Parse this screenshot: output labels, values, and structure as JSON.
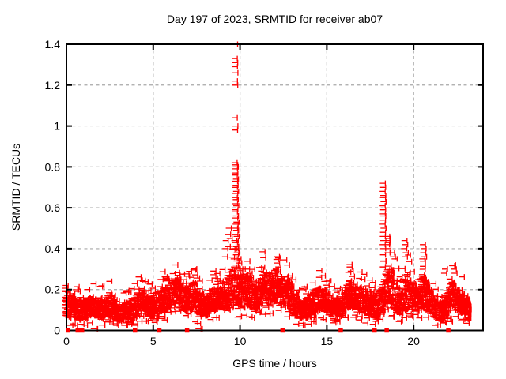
{
  "chart_data": {
    "type": "scatter",
    "title": "Day 197 of 2023, SRMTID for receiver ab07",
    "xlabel": "GPS time / hours",
    "ylabel": "SRMTID / TECUs",
    "xlim": [
      0,
      24
    ],
    "ylim": [
      0,
      1.4
    ],
    "x_ticks": [
      0,
      5,
      10,
      15,
      20
    ],
    "x_tick_labels": [
      "0",
      "5",
      "10",
      "15",
      "20"
    ],
    "y_ticks": [
      0,
      0.2,
      0.4,
      0.6,
      0.8,
      1.0,
      1.2,
      1.4
    ],
    "y_tick_labels": [
      "0",
      "0.2",
      "0.4",
      "0.6",
      "0.8",
      "1",
      "1.2",
      "1.4"
    ],
    "grid": true,
    "legend": "none",
    "marker": "plus",
    "marker_color": "#ff0000",
    "grid_color": "#a8a8a8",
    "border_color": "#000000",
    "background_color": "#ffffff",
    "data_start_hour": 0.05,
    "data_end_hour": 23.32,
    "baseline_band_note": "dense noisy band; control points [hour, center TECU, half-spread TECU]",
    "baseline_band": [
      [
        0.05,
        0.14,
        0.07
      ],
      [
        0.3,
        0.12,
        0.06
      ],
      [
        0.7,
        0.1,
        0.05
      ],
      [
        1.1,
        0.1,
        0.05
      ],
      [
        1.5,
        0.12,
        0.05
      ],
      [
        1.9,
        0.11,
        0.05
      ],
      [
        2.3,
        0.1,
        0.05
      ],
      [
        2.6,
        0.13,
        0.05
      ],
      [
        3.0,
        0.08,
        0.04
      ],
      [
        3.4,
        0.09,
        0.04
      ],
      [
        3.8,
        0.1,
        0.05
      ],
      [
        4.2,
        0.13,
        0.06
      ],
      [
        4.5,
        0.15,
        0.06
      ],
      [
        4.9,
        0.11,
        0.05
      ],
      [
        5.3,
        0.13,
        0.06
      ],
      [
        5.7,
        0.15,
        0.06
      ],
      [
        6.1,
        0.17,
        0.06
      ],
      [
        6.5,
        0.2,
        0.07
      ],
      [
        6.8,
        0.15,
        0.06
      ],
      [
        7.1,
        0.16,
        0.06
      ],
      [
        7.4,
        0.18,
        0.07
      ],
      [
        7.8,
        0.13,
        0.06
      ],
      [
        8.1,
        0.12,
        0.05
      ],
      [
        8.5,
        0.15,
        0.06
      ],
      [
        8.9,
        0.16,
        0.06
      ],
      [
        9.2,
        0.17,
        0.07
      ],
      [
        9.5,
        0.19,
        0.08
      ],
      [
        9.8,
        0.22,
        0.09
      ],
      [
        10.1,
        0.19,
        0.08
      ],
      [
        10.5,
        0.2,
        0.08
      ],
      [
        10.9,
        0.16,
        0.06
      ],
      [
        11.2,
        0.18,
        0.07
      ],
      [
        11.5,
        0.22,
        0.08
      ],
      [
        11.9,
        0.2,
        0.08
      ],
      [
        12.2,
        0.22,
        0.08
      ],
      [
        12.5,
        0.18,
        0.07
      ],
      [
        12.9,
        0.2,
        0.08
      ],
      [
        13.2,
        0.13,
        0.06
      ],
      [
        13.6,
        0.1,
        0.05
      ],
      [
        14.0,
        0.11,
        0.05
      ],
      [
        14.4,
        0.14,
        0.06
      ],
      [
        14.8,
        0.16,
        0.06
      ],
      [
        15.2,
        0.13,
        0.05
      ],
      [
        15.6,
        0.11,
        0.05
      ],
      [
        16.0,
        0.12,
        0.05
      ],
      [
        16.4,
        0.18,
        0.07
      ],
      [
        16.7,
        0.16,
        0.06
      ],
      [
        17.1,
        0.15,
        0.06
      ],
      [
        17.5,
        0.13,
        0.06
      ],
      [
        17.9,
        0.11,
        0.05
      ],
      [
        18.2,
        0.14,
        0.07
      ],
      [
        18.5,
        0.2,
        0.09
      ],
      [
        18.8,
        0.22,
        0.09
      ],
      [
        19.1,
        0.16,
        0.07
      ],
      [
        19.4,
        0.13,
        0.06
      ],
      [
        19.7,
        0.2,
        0.09
      ],
      [
        20.0,
        0.17,
        0.07
      ],
      [
        20.3,
        0.15,
        0.06
      ],
      [
        20.7,
        0.2,
        0.09
      ],
      [
        21.0,
        0.15,
        0.06
      ],
      [
        21.4,
        0.1,
        0.05
      ],
      [
        21.7,
        0.09,
        0.05
      ],
      [
        22.0,
        0.13,
        0.06
      ],
      [
        22.3,
        0.17,
        0.07
      ],
      [
        22.6,
        0.15,
        0.06
      ],
      [
        22.9,
        0.14,
        0.06
      ],
      [
        23.1,
        0.12,
        0.05
      ],
      [
        23.3,
        0.1,
        0.05
      ]
    ],
    "spike_points": [
      [
        9.86,
        1.4
      ],
      [
        9.84,
        1.33
      ],
      [
        9.87,
        1.31
      ],
      [
        9.85,
        1.29
      ],
      [
        9.88,
        1.26
      ],
      [
        9.85,
        1.22
      ],
      [
        9.87,
        1.2
      ],
      [
        9.84,
        1.04
      ],
      [
        9.88,
        1.0
      ],
      [
        9.86,
        0.98
      ],
      [
        9.83,
        0.82
      ],
      [
        9.87,
        0.81
      ],
      [
        9.9,
        0.8
      ],
      [
        9.85,
        0.79
      ],
      [
        9.88,
        0.77
      ],
      [
        9.84,
        0.76
      ],
      [
        9.91,
        0.74
      ],
      [
        9.86,
        0.73
      ],
      [
        9.89,
        0.71
      ],
      [
        9.85,
        0.7
      ],
      [
        9.92,
        0.68
      ],
      [
        9.87,
        0.67
      ],
      [
        9.84,
        0.65
      ],
      [
        9.9,
        0.64
      ],
      [
        9.86,
        0.62
      ],
      [
        9.93,
        0.61
      ],
      [
        9.88,
        0.59
      ],
      [
        9.85,
        0.58
      ],
      [
        9.91,
        0.56
      ],
      [
        9.87,
        0.55
      ],
      [
        9.94,
        0.53
      ],
      [
        9.89,
        0.52
      ],
      [
        9.86,
        0.5
      ],
      [
        9.92,
        0.49
      ],
      [
        9.88,
        0.47
      ],
      [
        9.95,
        0.46
      ],
      [
        9.9,
        0.44
      ],
      [
        9.87,
        0.43
      ],
      [
        9.93,
        0.41
      ],
      [
        9.89,
        0.4
      ],
      [
        9.96,
        0.38
      ],
      [
        9.91,
        0.37
      ],
      [
        9.88,
        0.35
      ],
      [
        9.94,
        0.34
      ],
      [
        9.9,
        0.32
      ],
      [
        9.97,
        0.31
      ],
      [
        10.02,
        0.3
      ],
      [
        9.8,
        0.31
      ],
      [
        9.78,
        0.35
      ],
      [
        9.82,
        0.44
      ],
      [
        9.8,
        0.4
      ],
      [
        9.32,
        0.44
      ],
      [
        9.3,
        0.4
      ],
      [
        9.46,
        0.47
      ],
      [
        9.5,
        0.5
      ],
      [
        9.55,
        0.45
      ],
      [
        9.44,
        0.41
      ],
      [
        9.28,
        0.36
      ],
      [
        10.1,
        0.33
      ],
      [
        10.16,
        0.3
      ],
      [
        10.06,
        0.35
      ],
      [
        10.3,
        0.3
      ],
      [
        10.55,
        0.3
      ],
      [
        10.7,
        0.28
      ],
      [
        18.37,
        0.72
      ],
      [
        18.39,
        0.7
      ],
      [
        18.36,
        0.68
      ],
      [
        18.4,
        0.66
      ],
      [
        18.38,
        0.65
      ],
      [
        18.41,
        0.63
      ],
      [
        18.36,
        0.61
      ],
      [
        18.39,
        0.59
      ],
      [
        18.37,
        0.57
      ],
      [
        18.4,
        0.56
      ],
      [
        18.38,
        0.54
      ],
      [
        18.36,
        0.52
      ],
      [
        18.41,
        0.5
      ],
      [
        18.38,
        0.48
      ],
      [
        18.37,
        0.46
      ],
      [
        18.4,
        0.44
      ],
      [
        18.36,
        0.42
      ],
      [
        18.39,
        0.4
      ],
      [
        18.38,
        0.37
      ],
      [
        18.41,
        0.34
      ],
      [
        18.37,
        0.31
      ],
      [
        18.62,
        0.46
      ],
      [
        18.65,
        0.45
      ],
      [
        18.63,
        0.44
      ],
      [
        18.67,
        0.43
      ],
      [
        18.61,
        0.42
      ],
      [
        18.69,
        0.4
      ],
      [
        18.64,
        0.38
      ],
      [
        18.9,
        0.38
      ],
      [
        18.95,
        0.36
      ],
      [
        19.05,
        0.35
      ],
      [
        19.62,
        0.44
      ],
      [
        19.66,
        0.42
      ],
      [
        19.6,
        0.4
      ],
      [
        19.69,
        0.38
      ],
      [
        19.64,
        0.36
      ],
      [
        20.68,
        0.42
      ],
      [
        20.72,
        0.4
      ],
      [
        20.7,
        0.38
      ],
      [
        20.75,
        0.36
      ],
      [
        20.65,
        0.35
      ],
      [
        22.42,
        0.32
      ],
      [
        22.46,
        0.3
      ],
      [
        22.5,
        0.28
      ],
      [
        21.95,
        0.3
      ],
      [
        21.9,
        0.28
      ],
      [
        16.46,
        0.31
      ],
      [
        16.52,
        0.29
      ],
      [
        12.28,
        0.33
      ],
      [
        12.35,
        0.31
      ],
      [
        12.2,
        0.3
      ],
      [
        12.85,
        0.32
      ],
      [
        11.42,
        0.31
      ],
      [
        11.36,
        0.29
      ],
      [
        14.7,
        0.26
      ],
      [
        6.55,
        0.27
      ],
      [
        6.6,
        0.25
      ],
      [
        0.1,
        0.22
      ],
      [
        7.35,
        0.26
      ],
      [
        8.85,
        0.24
      ],
      [
        17.2,
        0.25
      ],
      [
        15.0,
        0.24
      ]
    ],
    "zero_square_hours": [
      0.1,
      0.65,
      0.9,
      3.95,
      5.35,
      6.95,
      12.45,
      15.8,
      17.75,
      18.45,
      22.0
    ],
    "zero_cross_hours": [
      1.72,
      1.8,
      7.75,
      7.83
    ]
  }
}
